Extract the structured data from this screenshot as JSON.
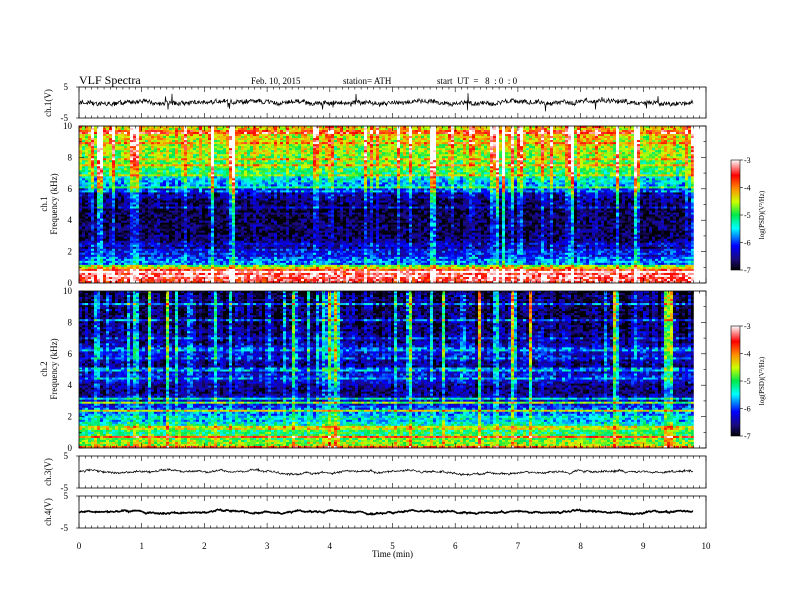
{
  "header": {
    "title": "VLF Spectra",
    "date": "Feb. 10, 2015",
    "station": "station= ATH",
    "start_ut": "start  UT  =   8  : 0  : 0"
  },
  "chart_data": [
    {
      "type": "line",
      "panel": "ch1-waveform",
      "ylabel": "ch.1(V)",
      "ylim": [
        -5,
        5
      ],
      "yticks": [
        "5",
        "-5"
      ],
      "xlim": [
        0,
        10
      ],
      "signal_end": 9.8,
      "baseline": 0,
      "noise_amplitude": 0.7,
      "spike_amplitude": 3.2,
      "color": "#000000"
    },
    {
      "type": "heatmap",
      "panel": "ch1-spectrogram",
      "ylabel": "Frequency  (kHz)",
      "channel_label": "ch.1",
      "ylim": [
        0,
        10
      ],
      "yticks": [
        "0",
        "2",
        "4",
        "6",
        "8",
        "10"
      ],
      "xlim": [
        0,
        10
      ],
      "signal_end": 9.8,
      "log_psd_profile": [
        {
          "f": 0.2,
          "v": -3.4
        },
        {
          "f": 0.5,
          "v": -3.2
        },
        {
          "f": 1.0,
          "v": -5.6
        },
        {
          "f": 1.5,
          "v": -6.0
        },
        {
          "f": 2.0,
          "v": -6.3
        },
        {
          "f": 2.5,
          "v": -6.5
        },
        {
          "f": 3.0,
          "v": -6.7
        },
        {
          "f": 4.0,
          "v": -6.8
        },
        {
          "f": 5.0,
          "v": -6.7
        },
        {
          "f": 5.8,
          "v": -6.4
        },
        {
          "f": 6.2,
          "v": -5.7
        },
        {
          "f": 7.0,
          "v": -5.1
        },
        {
          "f": 8.0,
          "v": -4.7
        },
        {
          "f": 9.0,
          "v": -4.4
        },
        {
          "f": 10.0,
          "v": -4.2
        }
      ],
      "colorbar": {
        "label": "log(PSD)(V²/Hz)",
        "range": [
          -7,
          -3
        ],
        "ticks": [
          "-3",
          "-4",
          "-5",
          "-6",
          "-7"
        ]
      }
    },
    {
      "type": "heatmap",
      "panel": "ch2-spectrogram",
      "ylabel": "Frequency  (kHz)",
      "channel_label": "ch.2",
      "ylim": [
        0,
        10
      ],
      "yticks": [
        "0",
        "2",
        "4",
        "6",
        "8",
        "10"
      ],
      "xlim": [
        0,
        10
      ],
      "signal_end": 9.8,
      "log_psd_profile": [
        {
          "f": 0.2,
          "v": -4.6
        },
        {
          "f": 0.6,
          "v": -4.8
        },
        {
          "f": 1.0,
          "v": -5.2
        },
        {
          "f": 1.5,
          "v": -5.4
        },
        {
          "f": 2.0,
          "v": -5.6
        },
        {
          "f": 2.5,
          "v": -5.9
        },
        {
          "f": 3.0,
          "v": -6.3
        },
        {
          "f": 3.5,
          "v": -6.6
        },
        {
          "f": 4.0,
          "v": -6.5
        },
        {
          "f": 4.6,
          "v": -6.2
        },
        {
          "f": 5.0,
          "v": -6.6
        },
        {
          "f": 5.6,
          "v": -6.5
        },
        {
          "f": 6.0,
          "v": -6.2
        },
        {
          "f": 7.0,
          "v": -6.6
        },
        {
          "f": 8.0,
          "v": -6.7
        },
        {
          "f": 9.0,
          "v": -6.7
        },
        {
          "f": 10.0,
          "v": -6.8
        }
      ],
      "colorbar": {
        "label": "log(PSD)(V²/Hz)",
        "range": [
          -7,
          -3
        ],
        "ticks": [
          "-3",
          "-4",
          "-5",
          "-6",
          "-7"
        ]
      }
    },
    {
      "type": "line",
      "panel": "ch3-waveform",
      "ylabel": "ch.3(V)",
      "ylim": [
        -5,
        5
      ],
      "yticks": [
        "5",
        "-5"
      ],
      "xlim": [
        0,
        10
      ],
      "signal_end": 9.8,
      "baseline": 0,
      "noise_amplitude": 0.25,
      "spike_amplitude": 0,
      "color": "#000000"
    },
    {
      "type": "line",
      "panel": "ch4-waveform",
      "ylabel": "ch.4(V)",
      "ylim": [
        -5,
        5
      ],
      "yticks": [
        "5",
        "-5"
      ],
      "xlim": [
        0,
        10
      ],
      "signal_end": 9.8,
      "baseline": 0,
      "noise_amplitude": 0.1,
      "spike_amplitude": 0,
      "color": "#000000"
    }
  ],
  "xaxis": {
    "label": "Time  (min)",
    "ticks": [
      "0",
      "1",
      "2",
      "3",
      "4",
      "5",
      "6",
      "7",
      "8",
      "9",
      "10"
    ],
    "range": [
      0,
      10
    ]
  }
}
